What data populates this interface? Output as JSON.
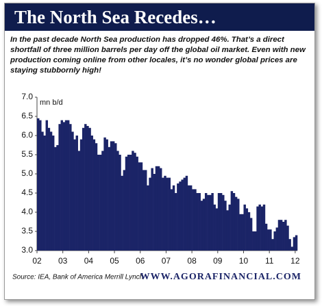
{
  "chart_data": {
    "type": "bar",
    "title": "The North Sea Recedes…",
    "subtitle": "In the past decade North Sea production has dropped 46%. That’s a direct shortfall of three million barrels per day off the global oil market. Even with new production coming online from other locales, it’s no wonder global prices are staying stubbornly high!",
    "y_label": "mn b/d",
    "source": "Source: IEA, Bank of America Merrill Lynch",
    "credit": "WWW.AGORAFINANCIAL.COM",
    "color": "#1b2467",
    "categories": [
      "02",
      null,
      null,
      null,
      null,
      null,
      null,
      null,
      null,
      null,
      null,
      null,
      "03",
      null,
      null,
      null,
      null,
      null,
      null,
      null,
      null,
      null,
      null,
      null,
      "04",
      null,
      null,
      null,
      null,
      null,
      null,
      null,
      null,
      null,
      null,
      null,
      "05",
      null,
      null,
      null,
      null,
      null,
      null,
      null,
      null,
      null,
      null,
      null,
      "06",
      null,
      null,
      null,
      null,
      null,
      null,
      null,
      null,
      null,
      null,
      null,
      "07",
      null,
      null,
      null,
      null,
      null,
      null,
      null,
      null,
      null,
      null,
      null,
      "08",
      null,
      null,
      null,
      null,
      null,
      null,
      null,
      null,
      null,
      null,
      null,
      "09",
      null,
      null,
      null,
      null,
      null,
      null,
      null,
      null,
      null,
      null,
      null,
      "10",
      null,
      null,
      null,
      null,
      null,
      null,
      null,
      null,
      null,
      null,
      null,
      "11",
      null,
      null,
      null,
      null,
      null,
      null,
      null,
      null,
      null,
      null,
      null,
      "12"
    ],
    "values": [
      6.45,
      6.4,
      6.1,
      6.0,
      6.4,
      6.2,
      6.1,
      6.0,
      5.7,
      5.75,
      6.3,
      6.4,
      6.35,
      6.4,
      6.4,
      6.3,
      6.1,
      5.9,
      6.0,
      5.6,
      5.9,
      6.2,
      6.3,
      6.25,
      6.2,
      6.0,
      5.9,
      5.8,
      5.5,
      5.5,
      5.6,
      5.95,
      5.9,
      5.7,
      5.85,
      5.85,
      5.8,
      5.6,
      5.5,
      4.95,
      5.1,
      5.45,
      5.5,
      5.5,
      5.6,
      5.55,
      5.45,
      5.3,
      5.3,
      5.1,
      5.1,
      4.7,
      4.9,
      5.15,
      5.0,
      5.2,
      5.2,
      5.15,
      4.9,
      4.95,
      4.9,
      4.9,
      4.6,
      4.7,
      4.5,
      4.75,
      4.8,
      4.85,
      4.9,
      4.95,
      4.7,
      4.7,
      4.6,
      4.6,
      4.5,
      4.5,
      4.3,
      4.35,
      4.5,
      4.45,
      4.45,
      4.5,
      4.2,
      4.1,
      4.5,
      4.5,
      4.45,
      4.3,
      4.05,
      4.2,
      4.55,
      4.5,
      4.4,
      4.35,
      3.95,
      3.95,
      4.2,
      4.1,
      4.0,
      3.85,
      3.5,
      3.5,
      4.15,
      4.2,
      4.15,
      4.2,
      3.7,
      3.55,
      3.55,
      3.3,
      3.5,
      3.6,
      3.8,
      3.8,
      3.75,
      3.8,
      3.65,
      3.3,
      3.1,
      3.35,
      3.4
    ],
    "ylim": [
      3.0,
      7.0
    ],
    "yticks": [
      {
        "value": 3.0,
        "label": "3.0"
      },
      {
        "value": 3.5,
        "label": "3.5"
      },
      {
        "value": 4.0,
        "label": "4.0"
      },
      {
        "value": 4.5,
        "label": "4.5"
      },
      {
        "value": 5.0,
        "label": "5.0"
      },
      {
        "value": 5.5,
        "label": "5.5"
      },
      {
        "value": 6.0,
        "label": "6.0"
      },
      {
        "value": 6.5,
        "label": "6.5"
      },
      {
        "value": 7.0,
        "label": "7.0"
      }
    ],
    "grid": false
  }
}
